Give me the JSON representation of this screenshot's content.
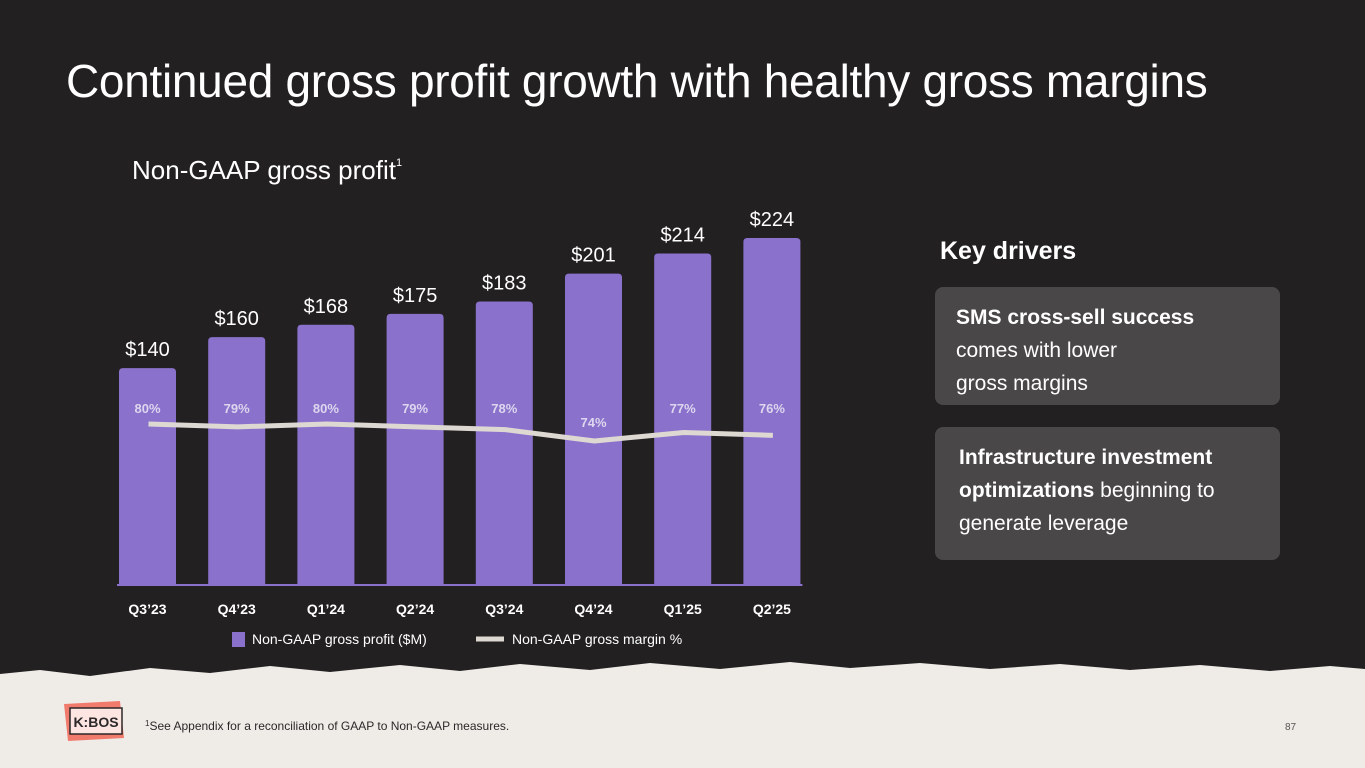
{
  "title": "Continued gross profit growth with healthy gross margins",
  "chart_title": "Non-GAAP gross profit",
  "chart_title_footnote": "1",
  "chart_data": {
    "type": "bar",
    "categories": [
      "Q3’23",
      "Q4’23",
      "Q1’24",
      "Q2’24",
      "Q3’24",
      "Q4’24",
      "Q1’25",
      "Q2’25"
    ],
    "series": [
      {
        "name": "Non-GAAP gross profit ($M)",
        "type": "bar",
        "values": [
          140,
          160,
          168,
          175,
          183,
          201,
          214,
          224
        ],
        "labels": [
          "$140",
          "$160",
          "$168",
          "$175",
          "$183",
          "$201",
          "$214",
          "$224"
        ]
      },
      {
        "name": "Non-GAAP gross margin  %",
        "type": "line",
        "values": [
          80,
          79,
          80,
          79,
          78,
          74,
          77,
          76
        ],
        "labels": [
          "80%",
          "79%",
          "80%",
          "79%",
          "78%",
          "74%",
          "77%",
          "76%"
        ]
      }
    ],
    "ylim": [
      0,
      224
    ],
    "legend_position": "bottom",
    "colors": {
      "bar": "#8a72cc",
      "line": "#ded8d3"
    }
  },
  "key_drivers": {
    "heading": "Key drivers",
    "card1": {
      "bold": "SMS cross-sell success",
      "line2": "comes with lower",
      "line3": "gross margins"
    },
    "card2": {
      "bold1": "Infrastructure investment",
      "bold2": "optimizations",
      "rest2": " beginning to",
      "line3": "generate leverage"
    }
  },
  "footer": {
    "footnote_marker": "1",
    "footnote": "See Appendix for a reconciliation of GAAP to Non-GAAP measures.",
    "page_number": "87",
    "logo_text": "K:BOS"
  },
  "colors": {
    "background": "#232021",
    "footer_bg": "#efece8",
    "card_bg": "#4a4748"
  }
}
